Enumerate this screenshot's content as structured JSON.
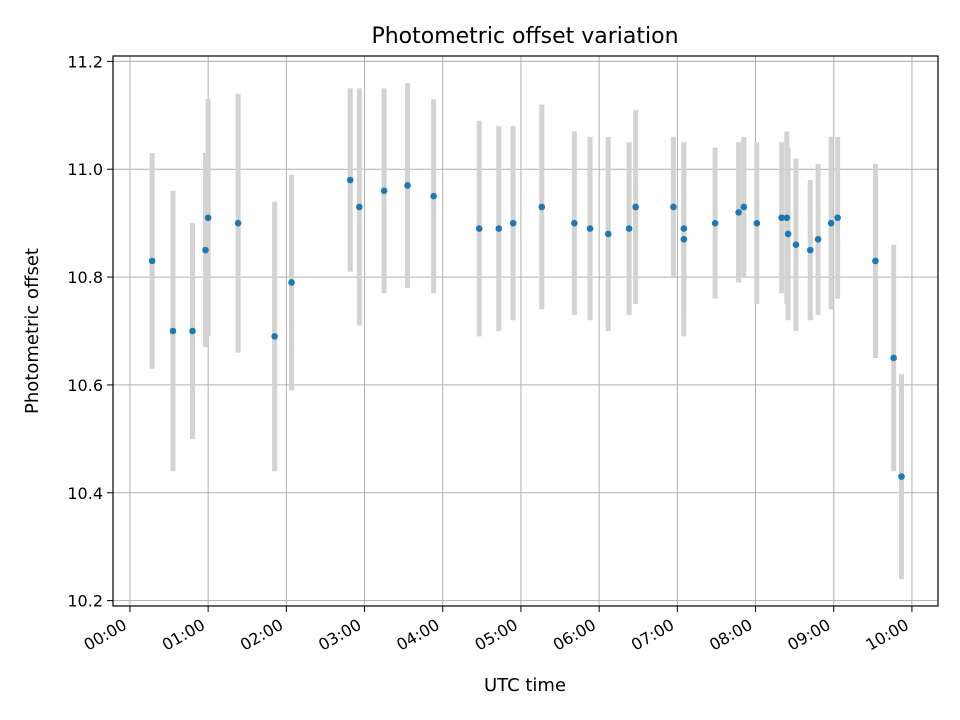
{
  "chart_data": {
    "type": "scatter",
    "title": "Photometric offset variation",
    "xlabel": "UTC time",
    "ylabel": "Photometric offset",
    "x_ticks": [
      "00:00",
      "01:00",
      "02:00",
      "03:00",
      "04:00",
      "05:00",
      "06:00",
      "07:00",
      "08:00",
      "09:00",
      "10:00"
    ],
    "y_ticks": [
      "10.2",
      "10.4",
      "10.6",
      "10.8",
      "11.0",
      "11.2"
    ],
    "xlim": [
      "-00:13",
      "10:20"
    ],
    "ylim": [
      10.19,
      11.21
    ],
    "grid": true,
    "legend": "none",
    "point_color": "#1f77b4",
    "errorbar_color": "#d3d3d3",
    "series": [
      {
        "points": [
          {
            "x": "00:17",
            "y": 10.83,
            "err": 0.2
          },
          {
            "x": "00:33",
            "y": 10.7,
            "err": 0.26
          },
          {
            "x": "00:48",
            "y": 10.7,
            "err": 0.2
          },
          {
            "x": "00:58",
            "y": 10.85,
            "err": 0.18
          },
          {
            "x": "01:00",
            "y": 10.91,
            "err": 0.22
          },
          {
            "x": "01:23",
            "y": 10.9,
            "err": 0.24
          },
          {
            "x": "01:51",
            "y": 10.69,
            "err": 0.25
          },
          {
            "x": "02:04",
            "y": 10.79,
            "err": 0.2
          },
          {
            "x": "02:49",
            "y": 10.98,
            "err": 0.17
          },
          {
            "x": "02:56",
            "y": 10.93,
            "err": 0.22
          },
          {
            "x": "03:15",
            "y": 10.96,
            "err": 0.19
          },
          {
            "x": "03:33",
            "y": 10.97,
            "err": 0.19
          },
          {
            "x": "03:53",
            "y": 10.95,
            "err": 0.18
          },
          {
            "x": "04:28",
            "y": 10.89,
            "err": 0.2
          },
          {
            "x": "04:43",
            "y": 10.89,
            "err": 0.19
          },
          {
            "x": "04:54",
            "y": 10.9,
            "err": 0.18
          },
          {
            "x": "05:16",
            "y": 10.93,
            "err": 0.19
          },
          {
            "x": "05:41",
            "y": 10.9,
            "err": 0.17
          },
          {
            "x": "05:53",
            "y": 10.89,
            "err": 0.17
          },
          {
            "x": "06:07",
            "y": 10.88,
            "err": 0.18
          },
          {
            "x": "06:23",
            "y": 10.89,
            "err": 0.16
          },
          {
            "x": "06:28",
            "y": 10.93,
            "err": 0.18
          },
          {
            "x": "06:57",
            "y": 10.93,
            "err": 0.13
          },
          {
            "x": "07:05",
            "y": 10.89,
            "err": 0.16
          },
          {
            "x": "07:05",
            "y": 10.87,
            "err": 0.18
          },
          {
            "x": "07:29",
            "y": 10.9,
            "err": 0.14
          },
          {
            "x": "07:47",
            "y": 10.92,
            "err": 0.13
          },
          {
            "x": "07:51",
            "y": 10.93,
            "err": 0.13
          },
          {
            "x": "08:01",
            "y": 10.9,
            "err": 0.15
          },
          {
            "x": "08:20",
            "y": 10.91,
            "err": 0.14
          },
          {
            "x": "08:24",
            "y": 10.91,
            "err": 0.16
          },
          {
            "x": "08:25",
            "y": 10.88,
            "err": 0.16
          },
          {
            "x": "08:31",
            "y": 10.86,
            "err": 0.16
          },
          {
            "x": "08:42",
            "y": 10.85,
            "err": 0.13
          },
          {
            "x": "08:48",
            "y": 10.87,
            "err": 0.14
          },
          {
            "x": "08:58",
            "y": 10.9,
            "err": 0.16
          },
          {
            "x": "09:03",
            "y": 10.91,
            "err": 0.15
          },
          {
            "x": "09:32",
            "y": 10.83,
            "err": 0.18
          },
          {
            "x": "09:46",
            "y": 10.65,
            "err": 0.21
          },
          {
            "x": "09:52",
            "y": 10.43,
            "err": 0.19
          }
        ]
      }
    ]
  }
}
